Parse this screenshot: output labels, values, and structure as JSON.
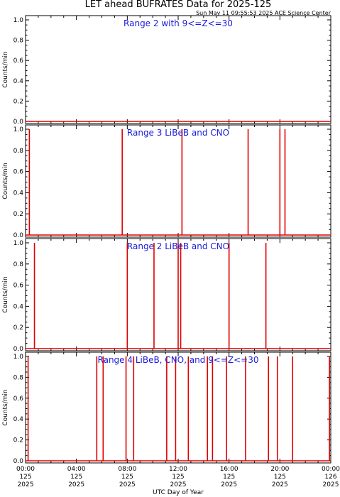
{
  "title": "LET ahead BUFRATES Data for 2025-125",
  "stamp": "Sun May 11 09:55:53 2025 ACE Science Center",
  "xlabel": "UTC Day of Year",
  "colors": {
    "series": "#e00000",
    "label": "#1a1adc",
    "axis": "#000000"
  },
  "chart_data": [
    {
      "type": "line",
      "panel_label": "Range 2 with 9<=Z<=30",
      "ylabel": "Counts/min",
      "ylim": [
        0,
        1
      ],
      "yticks": [
        "0.0",
        "0.2",
        "0.4",
        "0.6",
        "0.8",
        "1.0"
      ],
      "xlim": [
        0,
        24
      ],
      "spikes": []
    },
    {
      "type": "line",
      "panel_label": "Range 3 LiBeB and CNO",
      "ylabel": "Counts/min",
      "ylim": [
        0,
        1
      ],
      "yticks": [
        "0.0",
        "0.2",
        "0.4",
        "0.6",
        "0.8",
        "1.0"
      ],
      "xlim": [
        0,
        24
      ],
      "spikes": [
        0.3,
        7.6,
        12.3,
        17.5,
        20.0,
        20.4
      ]
    },
    {
      "type": "line",
      "panel_label": "Range 2 LiBeB and CNO",
      "ylabel": "Counts/min",
      "ylim": [
        0,
        1
      ],
      "yticks": [
        "0.0",
        "0.2",
        "0.4",
        "0.6",
        "0.8",
        "1.0"
      ],
      "xlim": [
        0,
        24
      ],
      "spikes": [
        0.7,
        8.0,
        10.1,
        12.0,
        12.2,
        16.0,
        18.9
      ]
    },
    {
      "type": "line",
      "panel_label": "Range 4 LiBeB, CNO, and 9<=Z<=30",
      "ylabel": "Counts/min",
      "ylim": [
        0,
        1
      ],
      "yticks": [
        "0.0",
        "0.2",
        "0.4",
        "0.6",
        "0.8",
        "1.0"
      ],
      "xlim": [
        0,
        24
      ],
      "spikes": [
        0.2,
        5.6,
        6.1,
        7.9,
        8.5,
        11.1,
        11.8,
        12.8,
        14.3,
        14.7,
        15.8,
        17.3,
        19.1,
        19.8,
        21.0,
        23.9
      ]
    }
  ],
  "xticks": [
    {
      "x": 0,
      "time": "00:00",
      "doy": "125",
      "year": "2025"
    },
    {
      "x": 4,
      "time": "04:00",
      "doy": "125",
      "year": "2025"
    },
    {
      "x": 8,
      "time": "08:00",
      "doy": "125",
      "year": "2025"
    },
    {
      "x": 12,
      "time": "12:00",
      "doy": "125",
      "year": "2025"
    },
    {
      "x": 16,
      "time": "16:00",
      "doy": "125",
      "year": "2025"
    },
    {
      "x": 20,
      "time": "20:00",
      "doy": "125",
      "year": "2025"
    },
    {
      "x": 24,
      "time": "00:00",
      "doy": "126",
      "year": "2025"
    }
  ]
}
